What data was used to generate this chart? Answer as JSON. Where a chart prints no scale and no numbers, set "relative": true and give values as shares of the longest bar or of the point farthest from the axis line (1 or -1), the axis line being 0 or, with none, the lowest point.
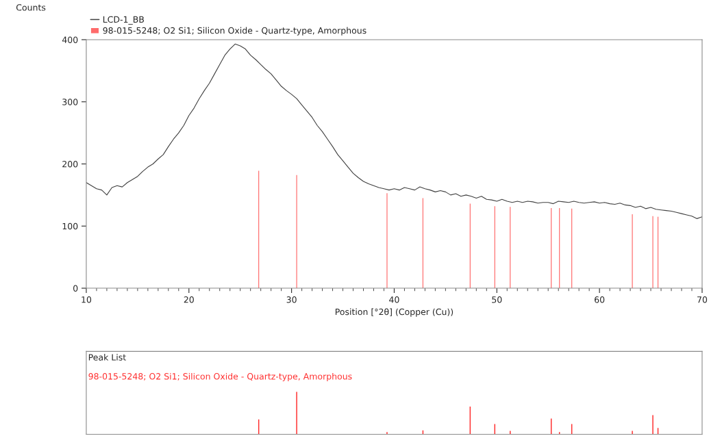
{
  "chart_data": [
    {
      "type": "line",
      "xlabel": "Position [°2θ] (Copper (Cu))",
      "ylabel": "Counts",
      "xlim": [
        10,
        70
      ],
      "ylim": [
        0,
        400
      ],
      "xticks": [
        10,
        20,
        30,
        40,
        50,
        60,
        70
      ],
      "yticks": [
        0,
        100,
        200,
        300,
        400
      ],
      "grid": false,
      "legend": "top left",
      "series": [
        {
          "name": "LCD-1_BB",
          "type": "line",
          "color": "#404040",
          "x": [
            10,
            10.5,
            11,
            11.5,
            12,
            12.5,
            13,
            13.5,
            14,
            14.5,
            15,
            15.5,
            16,
            16.5,
            17,
            17.5,
            18,
            18.5,
            19,
            19.5,
            20,
            20.5,
            21,
            21.5,
            22,
            22.5,
            23,
            23.5,
            24,
            24.5,
            25,
            25.5,
            26,
            26.5,
            27,
            27.5,
            28,
            28.5,
            29,
            29.5,
            30,
            30.5,
            31,
            31.5,
            32,
            32.5,
            33,
            33.5,
            34,
            34.5,
            35,
            35.5,
            36,
            36.5,
            37,
            37.5,
            38,
            38.5,
            39,
            39.5,
            40,
            40.5,
            41,
            41.5,
            42,
            42.5,
            43,
            43.5,
            44,
            44.5,
            45,
            45.5,
            46,
            46.5,
            47,
            47.5,
            48,
            48.5,
            49,
            49.5,
            50,
            50.5,
            51,
            51.5,
            52,
            52.5,
            53,
            53.5,
            54,
            54.5,
            55,
            55.5,
            56,
            56.5,
            57,
            57.5,
            58,
            58.5,
            59,
            59.5,
            60,
            60.5,
            61,
            61.5,
            62,
            62.5,
            63,
            63.5,
            64,
            64.5,
            65,
            65.5,
            66,
            66.5,
            67,
            67.5,
            68,
            68.5,
            69,
            69.5,
            70
          ],
          "values": [
            170,
            165,
            160,
            158,
            150,
            162,
            165,
            163,
            170,
            175,
            180,
            188,
            195,
            200,
            208,
            215,
            228,
            240,
            250,
            262,
            278,
            290,
            305,
            318,
            330,
            345,
            360,
            375,
            385,
            393,
            390,
            385,
            375,
            368,
            360,
            352,
            345,
            335,
            325,
            318,
            312,
            305,
            295,
            285,
            275,
            262,
            252,
            240,
            228,
            215,
            205,
            195,
            185,
            178,
            172,
            168,
            165,
            162,
            160,
            158,
            160,
            158,
            162,
            160,
            158,
            163,
            160,
            158,
            155,
            157,
            155,
            150,
            152,
            148,
            150,
            148,
            145,
            148,
            143,
            142,
            140,
            143,
            140,
            138,
            140,
            138,
            140,
            139,
            137,
            138,
            138,
            136,
            140,
            139,
            138,
            140,
            138,
            137,
            138,
            139,
            137,
            138,
            136,
            135,
            137,
            134,
            133,
            130,
            132,
            128,
            130,
            127,
            126,
            125,
            124,
            122,
            120,
            118,
            116,
            112,
            115
          ]
        },
        {
          "name": "98-015-5248; O2 Si1; Silicon Oxide - Quartz-type, Amorphous",
          "type": "bar",
          "color": "#ff6b6b",
          "x": [
            26.8,
            30.5,
            39.3,
            42.8,
            47.4,
            49.8,
            51.3,
            55.3,
            56.1,
            57.3,
            63.2,
            65.2,
            65.7
          ],
          "values": [
            189,
            182,
            153,
            145,
            136,
            132,
            131,
            129,
            129,
            128,
            119,
            116,
            115
          ]
        }
      ]
    },
    {
      "type": "bar",
      "title": "Peak List",
      "relative": true,
      "xlim": [
        10,
        70
      ],
      "tick_labels": false,
      "legend": "top left",
      "series": [
        {
          "name": "98-015-5248; O2 Si1; Silicon Oxide - Quartz-type, Amorphous",
          "color": "#ff3030",
          "x": [
            26.8,
            30.5,
            39.3,
            42.8,
            47.4,
            49.8,
            51.3,
            55.3,
            56.1,
            57.3,
            63.2,
            65.2,
            65.7
          ],
          "values": [
            0.35,
            1,
            0.05,
            0.09,
            0.65,
            0.24,
            0.08,
            0.37,
            0.05,
            0.24,
            0.08,
            0.45,
            0.15
          ]
        }
      ]
    }
  ]
}
